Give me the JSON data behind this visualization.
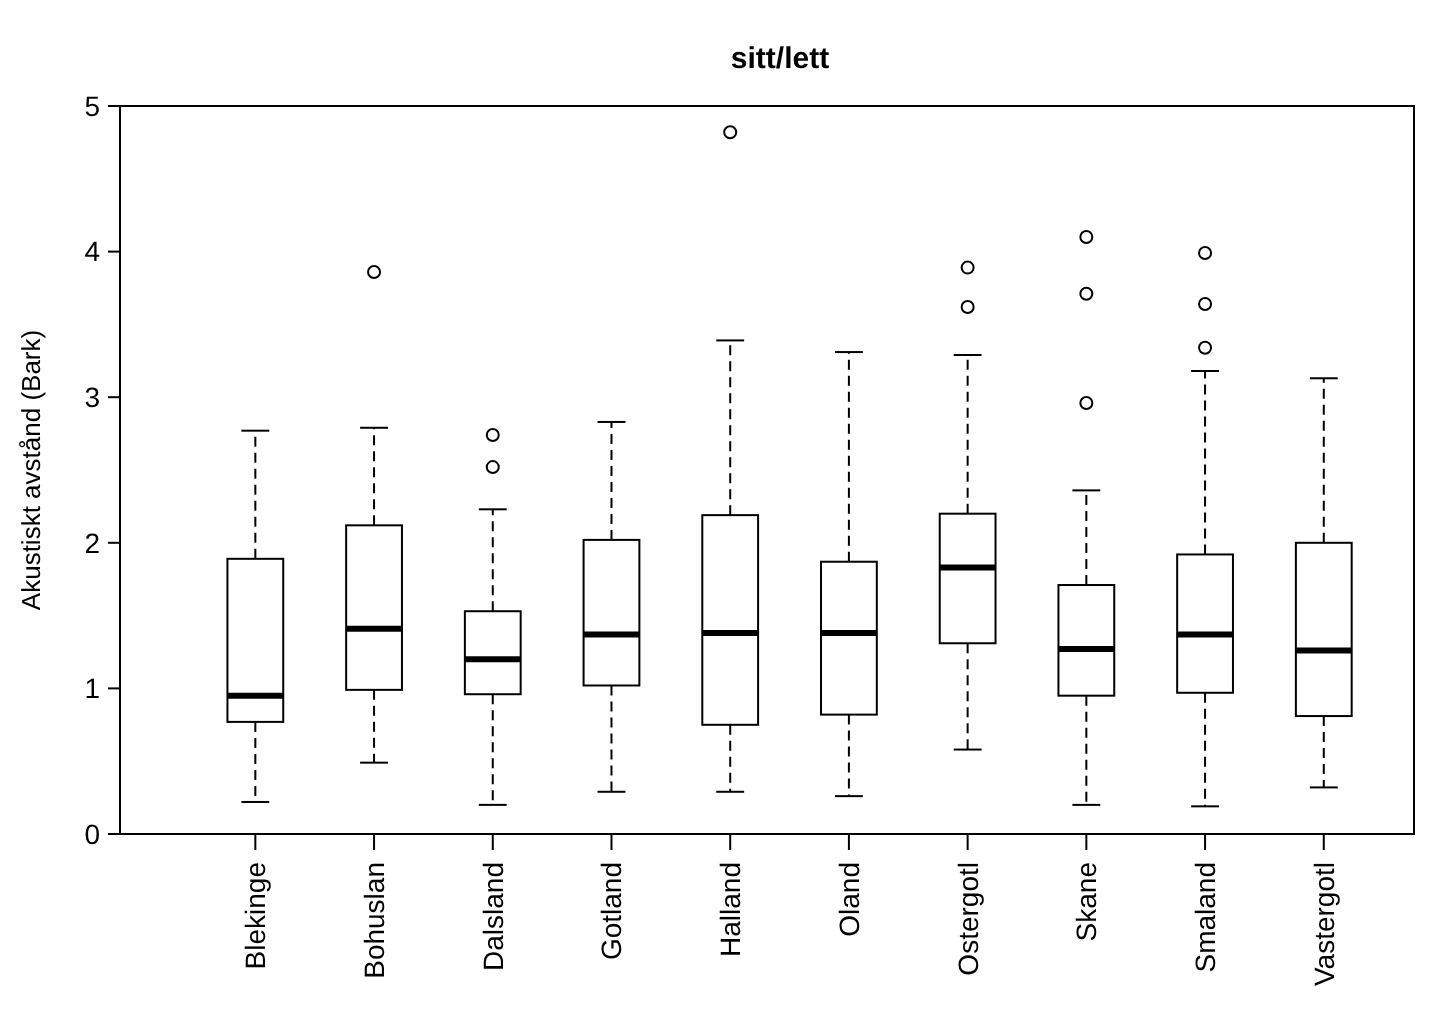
{
  "chart_data": {
    "type": "box",
    "title": "sitt/lett",
    "ylabel": "Akustiskt avstånd (Bark)",
    "categories": [
      "Blekinge",
      "Bohuslan",
      "Dalsland",
      "Gotland",
      "Halland",
      "Oland",
      "Ostergotl",
      "Skane",
      "Smaland",
      "Vastergotl"
    ],
    "boxes": [
      {
        "low": 0.22,
        "q1": 0.77,
        "median": 0.95,
        "q3": 1.89,
        "high": 2.77
      },
      {
        "low": 0.49,
        "q1": 0.99,
        "median": 1.41,
        "q3": 2.12,
        "high": 2.79,
        "outliers": [
          3.86
        ]
      },
      {
        "low": 0.2,
        "q1": 0.96,
        "median": 1.2,
        "q3": 1.53,
        "high": 2.23,
        "outliers": [
          2.52,
          2.74
        ]
      },
      {
        "low": 0.29,
        "q1": 1.02,
        "median": 1.37,
        "q3": 2.02,
        "high": 2.83
      },
      {
        "low": 0.29,
        "q1": 0.75,
        "median": 1.38,
        "q3": 2.19,
        "high": 3.39,
        "outliers": [
          4.82
        ]
      },
      {
        "low": 0.26,
        "q1": 0.82,
        "median": 1.38,
        "q3": 1.87,
        "high": 3.31
      },
      {
        "low": 0.58,
        "q1": 1.31,
        "median": 1.83,
        "q3": 2.2,
        "high": 3.29,
        "outliers": [
          3.62,
          3.89
        ]
      },
      {
        "low": 0.2,
        "q1": 0.95,
        "median": 1.27,
        "q3": 1.71,
        "high": 2.36,
        "outliers": [
          2.96,
          3.71,
          4.1
        ]
      },
      {
        "low": 0.19,
        "q1": 0.97,
        "median": 1.37,
        "q3": 1.92,
        "high": 3.18,
        "outliers": [
          3.34,
          3.64,
          3.99
        ]
      },
      {
        "low": 0.32,
        "q1": 0.81,
        "median": 1.26,
        "q3": 2.0,
        "high": 3.13
      }
    ],
    "color": "#ffffff",
    "ylim": [
      0,
      5
    ],
    "yticks": [
      0,
      1,
      2,
      3,
      4,
      5
    ],
    "grid": false
  }
}
